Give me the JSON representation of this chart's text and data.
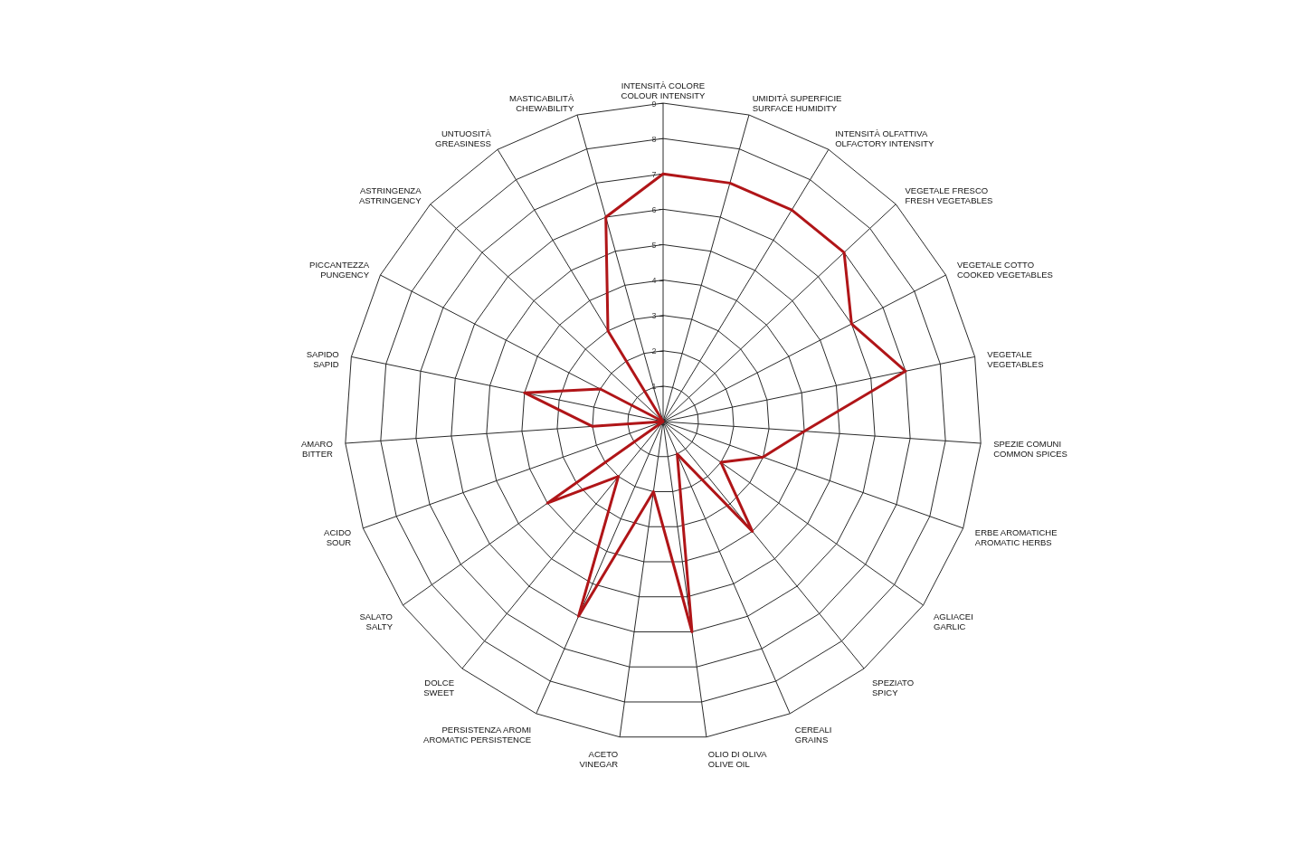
{
  "chart_data": {
    "type": "radar",
    "categories": [
      "INTENSITÀ COLORE\nCOLOUR INTENSITY",
      "UMIDITÀ SUPERFICIE\nSURFACE HUMIDITY",
      "INTENSITÀ OLFATTIVA\nOLFACTORY INTENSITY",
      "VEGETALE FRESCO\nFRESH VEGETABLES",
      "VEGETALE COTTO\nCOOKED VEGETABLES",
      "VEGETALE\nVEGETABLES",
      "SPEZIE COMUNI\nCOMMON SPICES",
      "ERBE AROMATICHE\nAROMATIC HERBS",
      "AGLIACEI\nGARLIC",
      "SPEZIATO\nSPICY",
      "CEREALI\nGRAINS",
      "OLIO DI OLIVA\nOLIVE OIL",
      "ACETO\nVINEGAR",
      "PERSISTENZA AROMI\nAROMATIC PERSISTENCE",
      "DOLCE\nSWEET",
      "SALATO\nSALTY",
      "ACIDO\nSOUR",
      "AMARO\nBITTER",
      "SAPIDO\nSAPID",
      "PICCANTEZZA\nPUNGENCY",
      "ASTRINGENZA\nASTRINGENCY",
      "UNTUOSITÀ\nGREASINESS",
      "MASTICABILITÀ\nCHEWABILITY"
    ],
    "series": [
      {
        "color": "#b01518",
        "values": [
          7,
          7,
          7,
          7,
          6,
          7,
          4,
          3,
          2,
          4,
          1,
          6,
          2,
          6,
          2,
          4,
          0,
          2,
          4,
          2,
          0,
          3,
          6
        ]
      }
    ],
    "ylim": [
      0,
      9
    ],
    "yticks": [
      1,
      2,
      3,
      4,
      5,
      6,
      7,
      8,
      9
    ],
    "grid": true
  }
}
